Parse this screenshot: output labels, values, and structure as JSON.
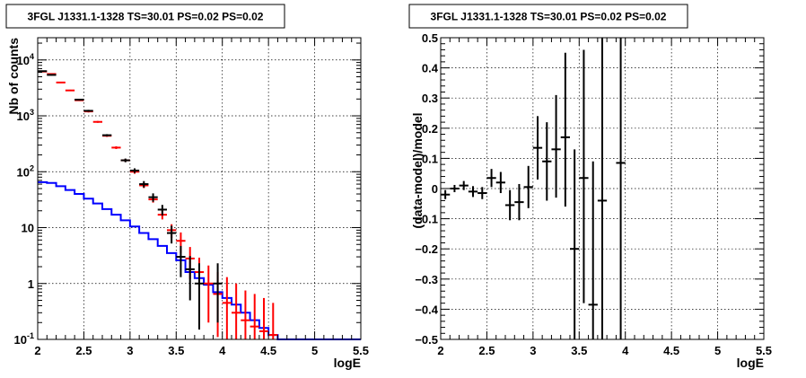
{
  "chart_data": [
    {
      "type": "line",
      "title": "3FGL J1331.1-1328 TS=30.01 PS=0.02 PS=0.02",
      "xlabel": "logE",
      "ylabel": "Nb of counts",
      "xlim": [
        2,
        5.5
      ],
      "ylim": [
        0.1,
        25000
      ],
      "y_scale": "log",
      "grid": true,
      "x_ticks": [
        "2",
        "2.5",
        "3",
        "3.5",
        "4",
        "4.5",
        "5",
        "5.5"
      ],
      "y_ticks": [
        {
          "value": 0.1,
          "base": "10",
          "exp": "-1"
        },
        {
          "value": 1,
          "base": "1",
          "exp": ""
        },
        {
          "value": 10,
          "base": "10",
          "exp": ""
        },
        {
          "value": 100,
          "base": "10",
          "exp": "2"
        },
        {
          "value": 1000,
          "base": "10",
          "exp": "3"
        },
        {
          "value": 10000,
          "base": "10",
          "exp": "4"
        }
      ],
      "colors": {
        "data": "#000000",
        "model": "#ff0000",
        "source": "#0000ff"
      },
      "bin_width": 0.1,
      "data_points": [
        {
          "x": 2.05,
          "y": 6300,
          "lo": 6150,
          "hi": 6450
        },
        {
          "x": 2.15,
          "y": 5400,
          "lo": 5250,
          "hi": 5550
        },
        {
          "x": 2.45,
          "y": 1950,
          "lo": 1880,
          "hi": 2020
        },
        {
          "x": 2.55,
          "y": 1230,
          "lo": 1180,
          "hi": 1280
        },
        {
          "x": 2.75,
          "y": 450,
          "lo": 430,
          "hi": 470
        },
        {
          "x": 2.95,
          "y": 160,
          "lo": 148,
          "hi": 172
        },
        {
          "x": 3.05,
          "y": 105,
          "lo": 95,
          "hi": 115
        },
        {
          "x": 3.15,
          "y": 60,
          "lo": 52,
          "hi": 68
        },
        {
          "x": 3.25,
          "y": 35,
          "lo": 29,
          "hi": 41
        },
        {
          "x": 3.35,
          "y": 21,
          "lo": 16.5,
          "hi": 25.5
        },
        {
          "x": 3.45,
          "y": 8,
          "lo": 5.2,
          "hi": 10.8
        },
        {
          "x": 3.55,
          "y": 3,
          "lo": 1.3,
          "hi": 4.7
        },
        {
          "x": 3.65,
          "y": 1.8,
          "lo": 0.5,
          "hi": 3.1
        },
        {
          "x": 3.75,
          "y": 1,
          "lo": 0.15,
          "hi": 2.3
        },
        {
          "x": 3.95,
          "y": 1,
          "lo": 0.2,
          "hi": 2.3
        }
      ],
      "model_points": [
        {
          "x": 2.05,
          "y": 6200,
          "lo": 6050,
          "hi": 6350
        },
        {
          "x": 2.15,
          "y": 5600,
          "lo": 5450,
          "hi": 5750
        },
        {
          "x": 2.25,
          "y": 3950,
          "lo": 3850,
          "hi": 4050
        },
        {
          "x": 2.35,
          "y": 2850,
          "lo": 2770,
          "hi": 2930
        },
        {
          "x": 2.45,
          "y": 1900,
          "lo": 1840,
          "hi": 1960
        },
        {
          "x": 2.55,
          "y": 1200,
          "lo": 1150,
          "hi": 1250
        },
        {
          "x": 2.65,
          "y": 780,
          "lo": 750,
          "hi": 810
        },
        {
          "x": 2.75,
          "y": 440,
          "lo": 420,
          "hi": 460
        },
        {
          "x": 2.85,
          "y": 270,
          "lo": 255,
          "hi": 285
        },
        {
          "x": 2.95,
          "y": 160,
          "lo": 150,
          "hi": 170
        },
        {
          "x": 3.05,
          "y": 100,
          "lo": 92,
          "hi": 108
        },
        {
          "x": 3.15,
          "y": 57,
          "lo": 51,
          "hi": 63
        },
        {
          "x": 3.25,
          "y": 32,
          "lo": 28,
          "hi": 36
        },
        {
          "x": 3.35,
          "y": 17,
          "lo": 14,
          "hi": 20.5
        },
        {
          "x": 3.45,
          "y": 9,
          "lo": 6.5,
          "hi": 11.5
        },
        {
          "x": 3.55,
          "y": 5.8,
          "lo": 3.5,
          "hi": 8.2
        },
        {
          "x": 3.65,
          "y": 2.8,
          "lo": 1.2,
          "hi": 4.5
        },
        {
          "x": 3.75,
          "y": 1.6,
          "lo": 0.5,
          "hi": 2.9
        },
        {
          "x": 3.85,
          "y": 1.0,
          "lo": 0.2,
          "hi": 2.1
        },
        {
          "x": 3.95,
          "y": 0.65,
          "lo": 0.11,
          "hi": 1.6
        },
        {
          "x": 4.05,
          "y": 0.45,
          "lo": 0.1,
          "hi": 1.3
        },
        {
          "x": 4.15,
          "y": 0.3,
          "lo": 0.1,
          "hi": 1.0
        },
        {
          "x": 4.25,
          "y": 0.22,
          "lo": 0.1,
          "hi": 0.75
        },
        {
          "x": 4.35,
          "y": 0.17,
          "lo": 0.1,
          "hi": 0.65
        },
        {
          "x": 4.45,
          "y": 0.14,
          "lo": 0.1,
          "hi": 0.55
        },
        {
          "x": 4.55,
          "y": 0.12,
          "lo": 0.1,
          "hi": 0.45
        }
      ],
      "source_steps": [
        {
          "x0": 2.0,
          "x1": 2.1,
          "y": 65
        },
        {
          "x0": 2.1,
          "x1": 2.2,
          "y": 63
        },
        {
          "x0": 2.2,
          "x1": 2.3,
          "y": 55
        },
        {
          "x0": 2.3,
          "x1": 2.4,
          "y": 47
        },
        {
          "x0": 2.4,
          "x1": 2.5,
          "y": 40
        },
        {
          "x0": 2.5,
          "x1": 2.6,
          "y": 33
        },
        {
          "x0": 2.6,
          "x1": 2.7,
          "y": 27
        },
        {
          "x0": 2.7,
          "x1": 2.8,
          "y": 21.5
        },
        {
          "x0": 2.8,
          "x1": 2.9,
          "y": 17
        },
        {
          "x0": 2.9,
          "x1": 3.0,
          "y": 13.5
        },
        {
          "x0": 3.0,
          "x1": 3.1,
          "y": 10.5
        },
        {
          "x0": 3.1,
          "x1": 3.2,
          "y": 8
        },
        {
          "x0": 3.2,
          "x1": 3.3,
          "y": 6.2
        },
        {
          "x0": 3.3,
          "x1": 3.4,
          "y": 4.7
        },
        {
          "x0": 3.4,
          "x1": 3.5,
          "y": 3.5
        },
        {
          "x0": 3.5,
          "x1": 3.6,
          "y": 2.6
        },
        {
          "x0": 3.6,
          "x1": 3.7,
          "y": 1.6
        },
        {
          "x0": 3.7,
          "x1": 3.8,
          "y": 1.25
        },
        {
          "x0": 3.8,
          "x1": 3.9,
          "y": 0.95
        },
        {
          "x0": 3.9,
          "x1": 4.0,
          "y": 0.7
        },
        {
          "x0": 4.0,
          "x1": 4.1,
          "y": 0.55
        },
        {
          "x0": 4.1,
          "x1": 4.2,
          "y": 0.42
        },
        {
          "x0": 4.2,
          "x1": 4.3,
          "y": 0.3
        },
        {
          "x0": 4.3,
          "x1": 4.4,
          "y": 0.22
        },
        {
          "x0": 4.4,
          "x1": 4.5,
          "y": 0.16
        },
        {
          "x0": 4.5,
          "x1": 4.6,
          "y": 0.12
        },
        {
          "x0": 4.6,
          "x1": 5.5,
          "y": 0.1
        }
      ]
    },
    {
      "type": "scatter",
      "title": "3FGL J1331.1-1328 TS=30.01 PS=0.02 PS=0.02",
      "xlabel": "logE",
      "ylabel": "(data-model)/model",
      "xlim": [
        2,
        5.5
      ],
      "ylim": [
        -0.5,
        0.5
      ],
      "grid": true,
      "x_ticks": [
        "2",
        "2.5",
        "3",
        "3.5",
        "4",
        "4.5",
        "5",
        "5.5"
      ],
      "y_ticks": [
        {
          "value": -0.5,
          "label": "−0.5"
        },
        {
          "value": -0.4,
          "label": "−0.4"
        },
        {
          "value": -0.3,
          "label": "−0.3"
        },
        {
          "value": -0.2,
          "label": "−0.2"
        },
        {
          "value": -0.1,
          "label": "−0.1"
        },
        {
          "value": 0,
          "label": "0"
        },
        {
          "value": 0.1,
          "label": "0.1"
        },
        {
          "value": 0.2,
          "label": "0.2"
        },
        {
          "value": 0.3,
          "label": "0.3"
        },
        {
          "value": 0.4,
          "label": "0.4"
        },
        {
          "value": 0.5,
          "label": "0.5"
        }
      ],
      "color": "#000000",
      "bin_width": 0.1,
      "points": [
        {
          "x": 2.05,
          "y": -0.02,
          "lo": -0.035,
          "hi": -0.005
        },
        {
          "x": 2.15,
          "y": 0.0,
          "lo": -0.012,
          "hi": 0.012
        },
        {
          "x": 2.25,
          "y": 0.01,
          "lo": -0.005,
          "hi": 0.025
        },
        {
          "x": 2.35,
          "y": -0.01,
          "lo": -0.028,
          "hi": 0.008
        },
        {
          "x": 2.45,
          "y": -0.015,
          "lo": -0.035,
          "hi": 0.005
        },
        {
          "x": 2.55,
          "y": 0.035,
          "lo": 0.005,
          "hi": 0.065
        },
        {
          "x": 2.65,
          "y": 0.02,
          "lo": -0.015,
          "hi": 0.055
        },
        {
          "x": 2.75,
          "y": -0.055,
          "lo": -0.105,
          "hi": -0.005
        },
        {
          "x": 2.85,
          "y": -0.045,
          "lo": -0.105,
          "hi": 0.015
        },
        {
          "x": 2.95,
          "y": 0.005,
          "lo": -0.065,
          "hi": 0.075
        },
        {
          "x": 3.05,
          "y": 0.135,
          "lo": 0.03,
          "hi": 0.24
        },
        {
          "x": 3.15,
          "y": 0.09,
          "lo": -0.04,
          "hi": 0.22
        },
        {
          "x": 3.25,
          "y": 0.13,
          "lo": -0.03,
          "hi": 0.31
        },
        {
          "x": 3.35,
          "y": 0.17,
          "lo": -0.06,
          "hi": 0.45
        },
        {
          "x": 3.45,
          "y": -0.2,
          "lo": -0.5,
          "hi": 0.13
        },
        {
          "x": 3.55,
          "y": 0.035,
          "lo": -0.38,
          "hi": 0.46
        },
        {
          "x": 3.65,
          "y": -0.385,
          "lo": -0.5,
          "hi": 0.09
        },
        {
          "x": 3.75,
          "y": -0.04,
          "lo": -0.5,
          "hi": 0.5
        },
        {
          "x": 3.95,
          "y": 0.085,
          "lo": -0.5,
          "hi": 0.5
        }
      ]
    }
  ]
}
